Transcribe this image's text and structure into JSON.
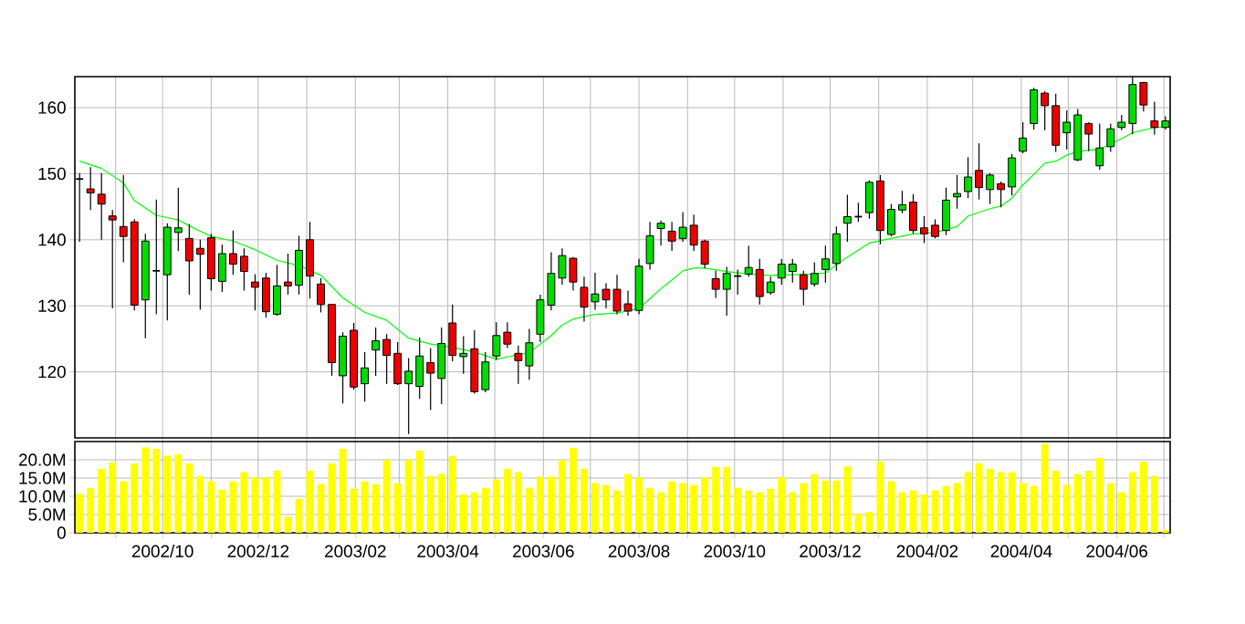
{
  "chart_data": [
    {
      "type": "candlestick",
      "xlim": [
        "2002-08-06",
        "2004-07-05"
      ],
      "ylim": [
        110,
        164.7
      ],
      "yticks": [
        120,
        130,
        140,
        150,
        160
      ],
      "grid": true,
      "tick_labels": "y",
      "xticks": [
        {
          "value": "2002-09-01",
          "label": null
        },
        {
          "value": "2002-10-01",
          "label": null
        },
        {
          "value": "2002-11-01",
          "label": null
        },
        {
          "value": "2002-12-01",
          "label": null
        },
        {
          "value": "2003-01-01",
          "label": null
        },
        {
          "value": "2003-02-01",
          "label": null
        },
        {
          "value": "2003-03-01",
          "label": null
        },
        {
          "value": "2003-04-01",
          "label": null
        },
        {
          "value": "2003-05-01",
          "label": null
        },
        {
          "value": "2003-06-01",
          "label": null
        },
        {
          "value": "2003-07-01",
          "label": null
        },
        {
          "value": "2003-08-01",
          "label": null
        },
        {
          "value": "2003-09-01",
          "label": null
        },
        {
          "value": "2003-10-01",
          "label": null
        },
        {
          "value": "2003-11-01",
          "label": null
        },
        {
          "value": "2003-12-01",
          "label": null
        },
        {
          "value": "2004-01-01",
          "label": null
        },
        {
          "value": "2004-02-01",
          "label": null
        },
        {
          "value": "2004-03-01",
          "label": null
        },
        {
          "value": "2004-04-01",
          "label": null
        },
        {
          "value": "2004-05-01",
          "label": null
        },
        {
          "value": "2004-06-01",
          "label": null
        },
        {
          "value": "2004-07-01",
          "label": null
        }
      ],
      "x": [
        "2002-08-09",
        "2002-08-16",
        "2002-08-23",
        "2002-08-30",
        "2002-09-06",
        "2002-09-13",
        "2002-09-20",
        "2002-09-27",
        "2002-10-04",
        "2002-10-11",
        "2002-10-18",
        "2002-10-25",
        "2002-11-01",
        "2002-11-08",
        "2002-11-15",
        "2002-11-22",
        "2002-11-29",
        "2002-12-06",
        "2002-12-13",
        "2002-12-20",
        "2002-12-27",
        "2003-01-03",
        "2003-01-10",
        "2003-01-17",
        "2003-01-24",
        "2003-01-31",
        "2003-02-07",
        "2003-02-14",
        "2003-02-21",
        "2003-02-28",
        "2003-03-07",
        "2003-03-14",
        "2003-03-21",
        "2003-03-28",
        "2003-04-04",
        "2003-04-11",
        "2003-04-18",
        "2003-04-25",
        "2003-05-02",
        "2003-05-09",
        "2003-05-16",
        "2003-05-23",
        "2003-05-30",
        "2003-06-06",
        "2003-06-13",
        "2003-06-20",
        "2003-06-27",
        "2003-07-04",
        "2003-07-11",
        "2003-07-18",
        "2003-07-25",
        "2003-08-01",
        "2003-08-08",
        "2003-08-15",
        "2003-08-22",
        "2003-08-29",
        "2003-09-05",
        "2003-09-12",
        "2003-09-19",
        "2003-09-26",
        "2003-10-03",
        "2003-10-10",
        "2003-10-17",
        "2003-10-24",
        "2003-10-31",
        "2003-11-07",
        "2003-11-14",
        "2003-11-21",
        "2003-11-28",
        "2003-12-05",
        "2003-12-12",
        "2003-12-19",
        "2003-12-26",
        "2004-01-02",
        "2004-01-09",
        "2004-01-16",
        "2004-01-23",
        "2004-01-30",
        "2004-02-06",
        "2004-02-13",
        "2004-02-20",
        "2004-02-27",
        "2004-03-05",
        "2004-03-12",
        "2004-03-19",
        "2004-03-26",
        "2004-04-02",
        "2004-04-09",
        "2004-04-16",
        "2004-04-23",
        "2004-04-30",
        "2004-05-07",
        "2004-05-14",
        "2004-05-21",
        "2004-05-28",
        "2004-06-04",
        "2004-06-11",
        "2004-06-18",
        "2004-06-25",
        "2004-07-02"
      ],
      "ohlc": [
        [
          149.2,
          150.1,
          139.7,
          149.2
        ],
        [
          147.7,
          151.0,
          144.5,
          147.1
        ],
        [
          146.9,
          150.1,
          140.0,
          145.4
        ],
        [
          143.6,
          144.5,
          129.6,
          143.0
        ],
        [
          142.0,
          149.8,
          136.6,
          140.5
        ],
        [
          142.7,
          143.1,
          129.3,
          130.1
        ],
        [
          130.9,
          140.9,
          125.1,
          139.8
        ],
        [
          135.3,
          146.1,
          128.7,
          135.3
        ],
        [
          134.7,
          142.5,
          127.8,
          141.9
        ],
        [
          141.1,
          147.9,
          138.3,
          141.8
        ],
        [
          140.2,
          142.4,
          131.7,
          136.8
        ],
        [
          138.7,
          140.0,
          129.4,
          137.8
        ],
        [
          140.3,
          140.9,
          132.3,
          134.1
        ],
        [
          133.7,
          139.3,
          132.1,
          137.9
        ],
        [
          137.9,
          141.4,
          134.7,
          136.3
        ],
        [
          137.5,
          138.7,
          132.3,
          135.2
        ],
        [
          133.6,
          134.8,
          129.3,
          132.8
        ],
        [
          134.2,
          135.0,
          128.2,
          129.1
        ],
        [
          128.7,
          136.2,
          128.5,
          133.0
        ],
        [
          133.6,
          137.9,
          131.7,
          133.0
        ],
        [
          133.1,
          140.6,
          131.7,
          138.4
        ],
        [
          140.0,
          142.7,
          131.1,
          134.5
        ],
        [
          133.3,
          134.2,
          129.0,
          130.2
        ],
        [
          130.2,
          130.3,
          119.4,
          121.4
        ],
        [
          119.4,
          126.0,
          115.2,
          125.4
        ],
        [
          126.3,
          127.4,
          117.3,
          117.7
        ],
        [
          118.2,
          123.0,
          115.5,
          120.6
        ],
        [
          123.3,
          126.7,
          119.4,
          124.7
        ],
        [
          124.9,
          125.7,
          118.2,
          122.5
        ],
        [
          122.8,
          124.5,
          118.0,
          118.2
        ],
        [
          118.2,
          122.1,
          110.6,
          120.1
        ],
        [
          117.8,
          125.2,
          115.9,
          122.4
        ],
        [
          121.4,
          123.6,
          114.2,
          119.8
        ],
        [
          119.0,
          126.7,
          115.1,
          124.3
        ],
        [
          127.4,
          130.2,
          121.6,
          122.5
        ],
        [
          122.3,
          125.4,
          119.7,
          122.8
        ],
        [
          123.5,
          126.3,
          116.7,
          117.0
        ],
        [
          117.3,
          123.0,
          116.9,
          121.5
        ],
        [
          122.4,
          127.5,
          121.8,
          125.5
        ],
        [
          126.0,
          127.5,
          123.6,
          124.2
        ],
        [
          122.8,
          124.0,
          118.2,
          121.7
        ],
        [
          120.9,
          126.5,
          118.8,
          124.4
        ],
        [
          125.7,
          131.7,
          124.5,
          130.9
        ],
        [
          130.1,
          138.1,
          129.3,
          134.9
        ],
        [
          134.2,
          138.7,
          133.2,
          137.6
        ],
        [
          137.2,
          137.4,
          132.3,
          133.6
        ],
        [
          132.8,
          134.4,
          127.6,
          129.8
        ],
        [
          130.6,
          135.0,
          129.4,
          131.8
        ],
        [
          132.5,
          133.4,
          129.6,
          130.9
        ],
        [
          132.5,
          134.7,
          128.7,
          129.2
        ],
        [
          130.3,
          132.3,
          128.5,
          129.2
        ],
        [
          129.3,
          137.1,
          128.7,
          136.0
        ],
        [
          136.4,
          142.7,
          135.5,
          140.6
        ],
        [
          141.7,
          142.9,
          139.1,
          142.5
        ],
        [
          141.3,
          142.7,
          138.3,
          139.8
        ],
        [
          140.2,
          144.2,
          139.7,
          141.9
        ],
        [
          142.2,
          143.8,
          138.3,
          139.2
        ],
        [
          139.8,
          140.0,
          135.7,
          136.3
        ],
        [
          134.1,
          135.3,
          131.2,
          132.5
        ],
        [
          132.5,
          135.9,
          128.5,
          134.9
        ],
        [
          134.5,
          135.5,
          131.7,
          134.5
        ],
        [
          134.8,
          139.1,
          134.4,
          135.8
        ],
        [
          135.5,
          137.1,
          130.2,
          131.4
        ],
        [
          132.0,
          134.4,
          131.7,
          133.6
        ],
        [
          134.2,
          137.1,
          133.2,
          136.3
        ],
        [
          135.2,
          137.1,
          133.5,
          136.3
        ],
        [
          134.7,
          135.3,
          130.1,
          132.5
        ],
        [
          133.3,
          136.6,
          132.9,
          134.9
        ],
        [
          135.5,
          139.1,
          133.5,
          137.1
        ],
        [
          136.4,
          142.0,
          135.3,
          140.9
        ],
        [
          142.5,
          146.8,
          139.7,
          143.5
        ],
        [
          143.5,
          145.6,
          142.7,
          143.5
        ],
        [
          144.1,
          149.0,
          143.2,
          148.7
        ],
        [
          148.9,
          149.8,
          139.3,
          141.4
        ],
        [
          140.8,
          145.4,
          140.5,
          144.6
        ],
        [
          144.5,
          147.4,
          144.0,
          145.3
        ],
        [
          145.7,
          146.9,
          140.9,
          141.4
        ],
        [
          141.8,
          143.6,
          139.5,
          140.9
        ],
        [
          142.2,
          143.1,
          140.2,
          140.5
        ],
        [
          141.4,
          147.9,
          140.7,
          146.0
        ],
        [
          146.5,
          149.8,
          144.7,
          147.0
        ],
        [
          147.3,
          152.5,
          146.3,
          149.5
        ],
        [
          150.5,
          154.6,
          146.1,
          147.9
        ],
        [
          147.6,
          150.1,
          145.4,
          149.8
        ],
        [
          148.5,
          148.8,
          144.9,
          147.6
        ],
        [
          148.0,
          153.0,
          146.7,
          152.4
        ],
        [
          153.4,
          157.8,
          153.1,
          155.4
        ],
        [
          157.6,
          163.0,
          156.7,
          162.7
        ],
        [
          162.2,
          162.5,
          156.6,
          160.3
        ],
        [
          160.3,
          162.1,
          153.3,
          154.3
        ],
        [
          156.2,
          159.6,
          153.7,
          157.8
        ],
        [
          152.1,
          159.8,
          151.9,
          158.9
        ],
        [
          157.6,
          157.8,
          153.4,
          156.0
        ],
        [
          151.2,
          157.6,
          150.6,
          153.9
        ],
        [
          154.1,
          157.6,
          153.3,
          156.8
        ],
        [
          157.0,
          158.9,
          156.6,
          157.8
        ],
        [
          157.6,
          164.7,
          156.0,
          163.5
        ],
        [
          163.8,
          163.9,
          159.4,
          160.4
        ],
        [
          158.0,
          160.9,
          155.9,
          157.0
        ],
        [
          157.0,
          158.7,
          156.7,
          158.0
        ]
      ],
      "colors": [
        "#000000",
        "#ee0000",
        "#ee0000",
        "#ee0000",
        "#ee0000",
        "#ee0000",
        "#00dd00",
        "#000000",
        "#00dd00",
        "#00dd00",
        "#ee0000",
        "#ee0000",
        "#ee0000",
        "#00dd00",
        "#ee0000",
        "#ee0000",
        "#ee0000",
        "#ee0000",
        "#00dd00",
        "#ee0000",
        "#00dd00",
        "#ee0000",
        "#ee0000",
        "#ee0000",
        "#00dd00",
        "#ee0000",
        "#00dd00",
        "#00dd00",
        "#ee0000",
        "#ee0000",
        "#00dd00",
        "#00dd00",
        "#ee0000",
        "#00dd00",
        "#ee0000",
        "#00dd00",
        "#ee0000",
        "#00dd00",
        "#00dd00",
        "#ee0000",
        "#ee0000",
        "#00dd00",
        "#00dd00",
        "#00dd00",
        "#00dd00",
        "#ee0000",
        "#ee0000",
        "#00dd00",
        "#ee0000",
        "#ee0000",
        "#ee0000",
        "#00dd00",
        "#00dd00",
        "#00dd00",
        "#ee0000",
        "#00dd00",
        "#ee0000",
        "#ee0000",
        "#ee0000",
        "#00dd00",
        "#000000",
        "#00dd00",
        "#ee0000",
        "#00dd00",
        "#00dd00",
        "#00dd00",
        "#ee0000",
        "#00dd00",
        "#00dd00",
        "#00dd00",
        "#00dd00",
        "#000000",
        "#00dd00",
        "#ee0000",
        "#00dd00",
        "#00dd00",
        "#ee0000",
        "#ee0000",
        "#ee0000",
        "#00dd00",
        "#00dd00",
        "#00dd00",
        "#ee0000",
        "#00dd00",
        "#ee0000",
        "#00dd00",
        "#00dd00",
        "#00dd00",
        "#ee0000",
        "#ee0000",
        "#00dd00",
        "#00dd00",
        "#ee0000",
        "#00dd00",
        "#00dd00",
        "#00dd00",
        "#00dd00",
        "#ee0000",
        "#ee0000",
        "#00dd00"
      ],
      "series": [
        {
          "type": "line",
          "color": "#00ff00",
          "x": [
            "2002-08-09",
            "2002-08-23",
            "2002-09-06",
            "2002-09-13",
            "2002-09-27",
            "2002-10-11",
            "2002-10-18",
            "2002-11-01",
            "2002-11-15",
            "2002-11-29",
            "2002-12-13",
            "2002-12-27",
            "2003-01-10",
            "2003-01-24",
            "2003-02-07",
            "2003-02-21",
            "2003-03-07",
            "2003-03-21",
            "2003-04-04",
            "2003-04-18",
            "2003-05-02",
            "2003-05-16",
            "2003-05-23",
            "2003-06-06",
            "2003-06-13",
            "2003-06-20",
            "2003-07-04",
            "2003-07-18",
            "2003-08-01",
            "2003-08-08",
            "2003-08-15",
            "2003-08-22",
            "2003-08-29",
            "2003-09-05",
            "2003-09-12",
            "2003-09-26",
            "2003-10-10",
            "2003-10-24",
            "2003-11-07",
            "2003-11-21",
            "2003-11-28",
            "2003-12-05",
            "2003-12-12",
            "2003-12-26",
            "2004-01-09",
            "2004-01-23",
            "2004-02-06",
            "2004-02-20",
            "2004-02-27",
            "2004-03-12",
            "2004-03-19",
            "2004-03-26",
            "2004-04-02",
            "2004-04-09",
            "2004-04-16",
            "2004-04-23",
            "2004-04-30",
            "2004-05-07",
            "2004-05-21",
            "2004-06-04",
            "2004-06-11",
            "2004-06-18",
            "2004-06-25",
            "2004-07-02"
          ],
          "values": [
            151.9,
            150.8,
            148.6,
            145.9,
            143.7,
            143.0,
            142.1,
            140.5,
            139.8,
            138.5,
            136.9,
            136.1,
            134.6,
            131.2,
            129.0,
            127.8,
            125.1,
            124.2,
            123.7,
            123.0,
            121.9,
            122.6,
            122.9,
            125.5,
            127.1,
            128.0,
            128.7,
            128.9,
            129.6,
            131.1,
            132.6,
            133.9,
            135.3,
            135.7,
            135.7,
            135.2,
            134.8,
            134.6,
            134.7,
            134.8,
            135.0,
            136.2,
            137.4,
            139.5,
            140.2,
            140.9,
            141.1,
            142.0,
            143.6,
            144.7,
            145.1,
            146.3,
            148.3,
            149.9,
            151.6,
            151.9,
            152.8,
            153.4,
            153.7,
            155.3,
            156.2,
            156.6,
            157.0,
            157.1
          ]
        }
      ]
    },
    {
      "type": "bar",
      "color": "#ffff00",
      "xlim": [
        "2002-08-06",
        "2004-07-05"
      ],
      "ylim": [
        0,
        25
      ],
      "grid": true,
      "yticks": [
        0,
        {
          "value": 5,
          "label": "5.0M"
        },
        {
          "value": 10,
          "label": "10.0M"
        },
        {
          "value": 15,
          "label": "15.0M"
        },
        {
          "value": 20,
          "label": "20.0M"
        }
      ],
      "xticks": [
        {
          "value": "2002-09-01",
          "label": null
        },
        {
          "value": "2002-10-01",
          "label": "2002/10"
        },
        {
          "value": "2002-11-01",
          "label": null
        },
        {
          "value": "2002-12-01",
          "label": "2002/12"
        },
        {
          "value": "2003-01-01",
          "label": null
        },
        {
          "value": "2003-02-01",
          "label": "2003/02"
        },
        {
          "value": "2003-03-01",
          "label": null
        },
        {
          "value": "2003-04-01",
          "label": "2003/04"
        },
        {
          "value": "2003-05-01",
          "label": null
        },
        {
          "value": "2003-06-01",
          "label": "2003/06"
        },
        {
          "value": "2003-07-01",
          "label": null
        },
        {
          "value": "2003-08-01",
          "label": "2003/08"
        },
        {
          "value": "2003-09-01",
          "label": null
        },
        {
          "value": "2003-10-01",
          "label": "2003/10"
        },
        {
          "value": "2003-11-01",
          "label": null
        },
        {
          "value": "2003-12-01",
          "label": "2003/12"
        },
        {
          "value": "2004-01-01",
          "label": null
        },
        {
          "value": "2004-02-01",
          "label": "2004/02"
        },
        {
          "value": "2004-03-01",
          "label": null
        },
        {
          "value": "2004-04-01",
          "label": "2004/04"
        },
        {
          "value": "2004-05-01",
          "label": null
        },
        {
          "value": "2004-06-01",
          "label": "2004/06"
        },
        {
          "value": "2004-07-01",
          "label": null
        }
      ],
      "x": [
        "2002-08-09",
        "2002-08-16",
        "2002-08-23",
        "2002-08-30",
        "2002-09-06",
        "2002-09-13",
        "2002-09-20",
        "2002-09-27",
        "2002-10-04",
        "2002-10-11",
        "2002-10-18",
        "2002-10-25",
        "2002-11-01",
        "2002-11-08",
        "2002-11-15",
        "2002-11-22",
        "2002-11-29",
        "2002-12-06",
        "2002-12-13",
        "2002-12-20",
        "2002-12-27",
        "2003-01-03",
        "2003-01-10",
        "2003-01-17",
        "2003-01-24",
        "2003-01-31",
        "2003-02-07",
        "2003-02-14",
        "2003-02-21",
        "2003-02-28",
        "2003-03-07",
        "2003-03-14",
        "2003-03-21",
        "2003-03-28",
        "2003-04-04",
        "2003-04-11",
        "2003-04-18",
        "2003-04-25",
        "2003-05-02",
        "2003-05-09",
        "2003-05-16",
        "2003-05-23",
        "2003-05-30",
        "2003-06-06",
        "2003-06-13",
        "2003-06-20",
        "2003-06-27",
        "2003-07-04",
        "2003-07-11",
        "2003-07-18",
        "2003-07-25",
        "2003-08-01",
        "2003-08-08",
        "2003-08-15",
        "2003-08-22",
        "2003-08-29",
        "2003-09-05",
        "2003-09-12",
        "2003-09-19",
        "2003-09-26",
        "2003-10-03",
        "2003-10-10",
        "2003-10-17",
        "2003-10-24",
        "2003-10-31",
        "2003-11-07",
        "2003-11-14",
        "2003-11-21",
        "2003-11-28",
        "2003-12-05",
        "2003-12-12",
        "2003-12-19",
        "2003-12-26",
        "2004-01-02",
        "2004-01-09",
        "2004-01-16",
        "2004-01-23",
        "2004-01-30",
        "2004-02-06",
        "2004-02-13",
        "2004-02-20",
        "2004-02-27",
        "2004-03-05",
        "2004-03-12",
        "2004-03-19",
        "2004-03-26",
        "2004-04-02",
        "2004-04-09",
        "2004-04-16",
        "2004-04-23",
        "2004-04-30",
        "2004-05-07",
        "2004-05-14",
        "2004-05-21",
        "2004-05-28",
        "2004-06-04",
        "2004-06-11",
        "2004-06-18",
        "2004-06-25",
        "2004-07-02"
      ],
      "values": [
        10.7,
        12.3,
        17.5,
        19.3,
        14.1,
        19.0,
        23.4,
        23.0,
        21.1,
        21.5,
        19.0,
        15.6,
        14.1,
        11.8,
        14.1,
        16.6,
        15.2,
        15.2,
        17.0,
        4.4,
        9.3,
        17.0,
        13.3,
        19.0,
        23.0,
        12.1,
        14.1,
        13.3,
        20.0,
        13.6,
        20.0,
        22.5,
        15.6,
        16.1,
        21.0,
        10.5,
        11.1,
        12.3,
        14.6,
        17.5,
        16.6,
        12.3,
        15.4,
        15.4,
        20.0,
        23.3,
        17.5,
        13.6,
        13.1,
        11.6,
        16.1,
        15.2,
        12.3,
        11.1,
        14.1,
        13.6,
        13.1,
        15.2,
        18.0,
        18.0,
        12.3,
        11.6,
        11.1,
        12.1,
        15.2,
        11.1,
        13.6,
        16.1,
        14.3,
        14.3,
        18.2,
        5.2,
        5.7,
        19.5,
        14.1,
        11.1,
        11.6,
        10.5,
        11.6,
        12.8,
        13.6,
        16.6,
        19.0,
        17.5,
        16.6,
        16.6,
        13.6,
        12.8,
        24.4,
        17.0,
        13.1,
        16.1,
        17.0,
        20.5,
        13.6,
        11.1,
        16.6,
        19.5,
        15.6,
        0.8
      ]
    }
  ]
}
